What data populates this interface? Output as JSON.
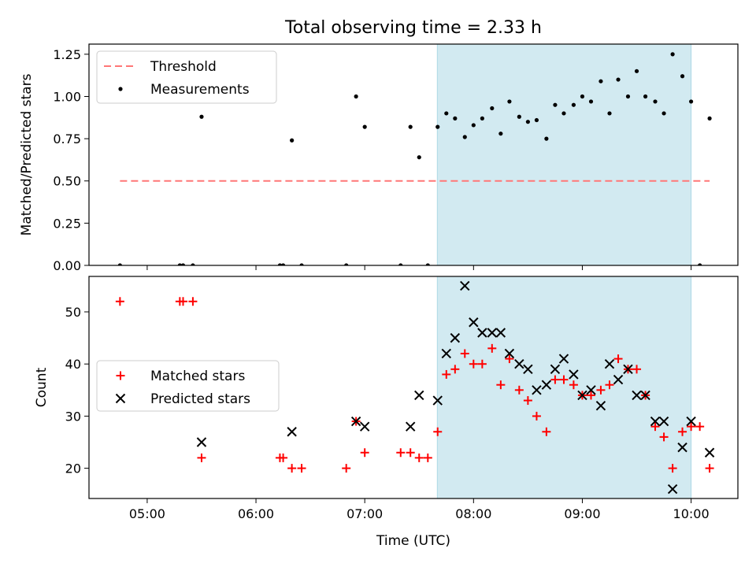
{
  "figure": {
    "title": "Total observing time = 2.33 h",
    "xlabel": "Time (UTC)",
    "x_ticks": [
      "05:00",
      "06:00",
      "07:00",
      "08:00",
      "09:00",
      "10:00"
    ],
    "x_tick_hours": [
      5,
      6,
      7,
      8,
      9,
      10
    ],
    "x_range": [
      4.465,
      10.43
    ],
    "shaded_region": [
      7.667,
      10.0
    ],
    "shade_color": "#add8e6"
  },
  "chart_data": [
    {
      "type": "scatter",
      "ylabel": "Matched/Predicted stars",
      "ylim": [
        0,
        1.31
      ],
      "y_ticks": [
        "0.00",
        "0.25",
        "0.50",
        "0.75",
        "1.00",
        "1.25"
      ],
      "y_tick_values": [
        0,
        0.25,
        0.5,
        0.75,
        1.0,
        1.25
      ],
      "legend_position": "upper-left",
      "threshold": {
        "name": "Threshold",
        "value": 0.5,
        "x_range": [
          4.75,
          10.17
        ],
        "color": "#ff7777"
      },
      "series": [
        {
          "name": "Measurements",
          "color": "#000000",
          "points": [
            [
              4.75,
              0
            ],
            [
              5.3,
              0
            ],
            [
              5.33,
              0
            ],
            [
              5.42,
              0
            ],
            [
              5.5,
              0.88
            ],
            [
              6.22,
              0
            ],
            [
              6.25,
              0
            ],
            [
              6.33,
              0.74
            ],
            [
              6.42,
              0
            ],
            [
              6.83,
              0
            ],
            [
              6.92,
              1.0
            ],
            [
              7.0,
              0.82
            ],
            [
              7.33,
              0
            ],
            [
              7.42,
              0.82
            ],
            [
              7.5,
              0.64
            ],
            [
              7.58,
              0
            ],
            [
              7.67,
              0.82
            ],
            [
              7.75,
              0.9
            ],
            [
              7.83,
              0.87
            ],
            [
              7.92,
              0.76
            ],
            [
              8.0,
              0.83
            ],
            [
              8.08,
              0.87
            ],
            [
              8.17,
              0.93
            ],
            [
              8.25,
              0.78
            ],
            [
              8.33,
              0.97
            ],
            [
              8.42,
              0.88
            ],
            [
              8.5,
              0.85
            ],
            [
              8.58,
              0.86
            ],
            [
              8.67,
              0.75
            ],
            [
              8.75,
              0.95
            ],
            [
              8.83,
              0.9
            ],
            [
              8.92,
              0.95
            ],
            [
              9.0,
              1.0
            ],
            [
              9.08,
              0.97
            ],
            [
              9.17,
              1.09
            ],
            [
              9.25,
              0.9
            ],
            [
              9.33,
              1.1
            ],
            [
              9.42,
              1.0
            ],
            [
              9.5,
              1.15
            ],
            [
              9.58,
              1.0
            ],
            [
              9.67,
              0.97
            ],
            [
              9.75,
              0.9
            ],
            [
              9.83,
              1.25
            ],
            [
              9.92,
              1.12
            ],
            [
              10.0,
              0.97
            ],
            [
              10.08,
              0
            ],
            [
              10.17,
              0.87
            ]
          ]
        }
      ]
    },
    {
      "type": "scatter",
      "ylabel": "Count",
      "ylim": [
        14.2,
        56.8
      ],
      "y_ticks": [
        "20",
        "30",
        "40",
        "50"
      ],
      "y_tick_values": [
        20,
        30,
        40,
        50
      ],
      "legend_position": "center-left",
      "series": [
        {
          "name": "Matched stars",
          "marker": "plus",
          "color": "#ff0000",
          "points": [
            [
              4.75,
              52
            ],
            [
              5.3,
              52
            ],
            [
              5.33,
              52
            ],
            [
              5.42,
              52
            ],
            [
              5.5,
              22
            ],
            [
              6.22,
              22
            ],
            [
              6.25,
              22
            ],
            [
              6.33,
              20
            ],
            [
              6.42,
              20
            ],
            [
              6.83,
              20
            ],
            [
              6.92,
              29
            ],
            [
              7.0,
              23
            ],
            [
              7.33,
              23
            ],
            [
              7.42,
              23
            ],
            [
              7.5,
              22
            ],
            [
              7.58,
              22
            ],
            [
              7.67,
              27
            ],
            [
              7.75,
              38
            ],
            [
              7.83,
              39
            ],
            [
              7.92,
              42
            ],
            [
              8.0,
              40
            ],
            [
              8.08,
              40
            ],
            [
              8.17,
              43
            ],
            [
              8.25,
              36
            ],
            [
              8.33,
              41
            ],
            [
              8.42,
              35
            ],
            [
              8.5,
              33
            ],
            [
              8.58,
              30
            ],
            [
              8.67,
              27
            ],
            [
              8.75,
              37
            ],
            [
              8.83,
              37
            ],
            [
              8.92,
              36
            ],
            [
              9.0,
              34
            ],
            [
              9.08,
              34
            ],
            [
              9.17,
              35
            ],
            [
              9.25,
              36
            ],
            [
              9.33,
              41
            ],
            [
              9.42,
              39
            ],
            [
              9.5,
              39
            ],
            [
              9.58,
              34
            ],
            [
              9.67,
              28
            ],
            [
              9.75,
              26
            ],
            [
              9.83,
              20
            ],
            [
              9.92,
              27
            ],
            [
              10.0,
              28
            ],
            [
              10.08,
              28
            ],
            [
              10.17,
              20
            ]
          ]
        },
        {
          "name": "Predicted stars",
          "marker": "x",
          "color": "#000000",
          "points": [
            [
              5.5,
              25
            ],
            [
              6.33,
              27
            ],
            [
              6.92,
              29
            ],
            [
              7.0,
              28
            ],
            [
              7.42,
              28
            ],
            [
              7.5,
              34
            ],
            [
              7.67,
              33
            ],
            [
              7.75,
              42
            ],
            [
              7.83,
              45
            ],
            [
              7.92,
              55
            ],
            [
              8.0,
              48
            ],
            [
              8.08,
              46
            ],
            [
              8.17,
              46
            ],
            [
              8.25,
              46
            ],
            [
              8.33,
              42
            ],
            [
              8.42,
              40
            ],
            [
              8.5,
              39
            ],
            [
              8.58,
              35
            ],
            [
              8.67,
              36
            ],
            [
              8.75,
              39
            ],
            [
              8.83,
              41
            ],
            [
              8.92,
              38
            ],
            [
              9.0,
              34
            ],
            [
              9.08,
              35
            ],
            [
              9.17,
              32
            ],
            [
              9.25,
              40
            ],
            [
              9.33,
              37
            ],
            [
              9.42,
              39
            ],
            [
              9.5,
              34
            ],
            [
              9.58,
              34
            ],
            [
              9.67,
              29
            ],
            [
              9.75,
              29
            ],
            [
              9.83,
              16
            ],
            [
              9.92,
              24
            ],
            [
              10.0,
              29
            ],
            [
              10.17,
              23
            ]
          ]
        }
      ]
    }
  ]
}
